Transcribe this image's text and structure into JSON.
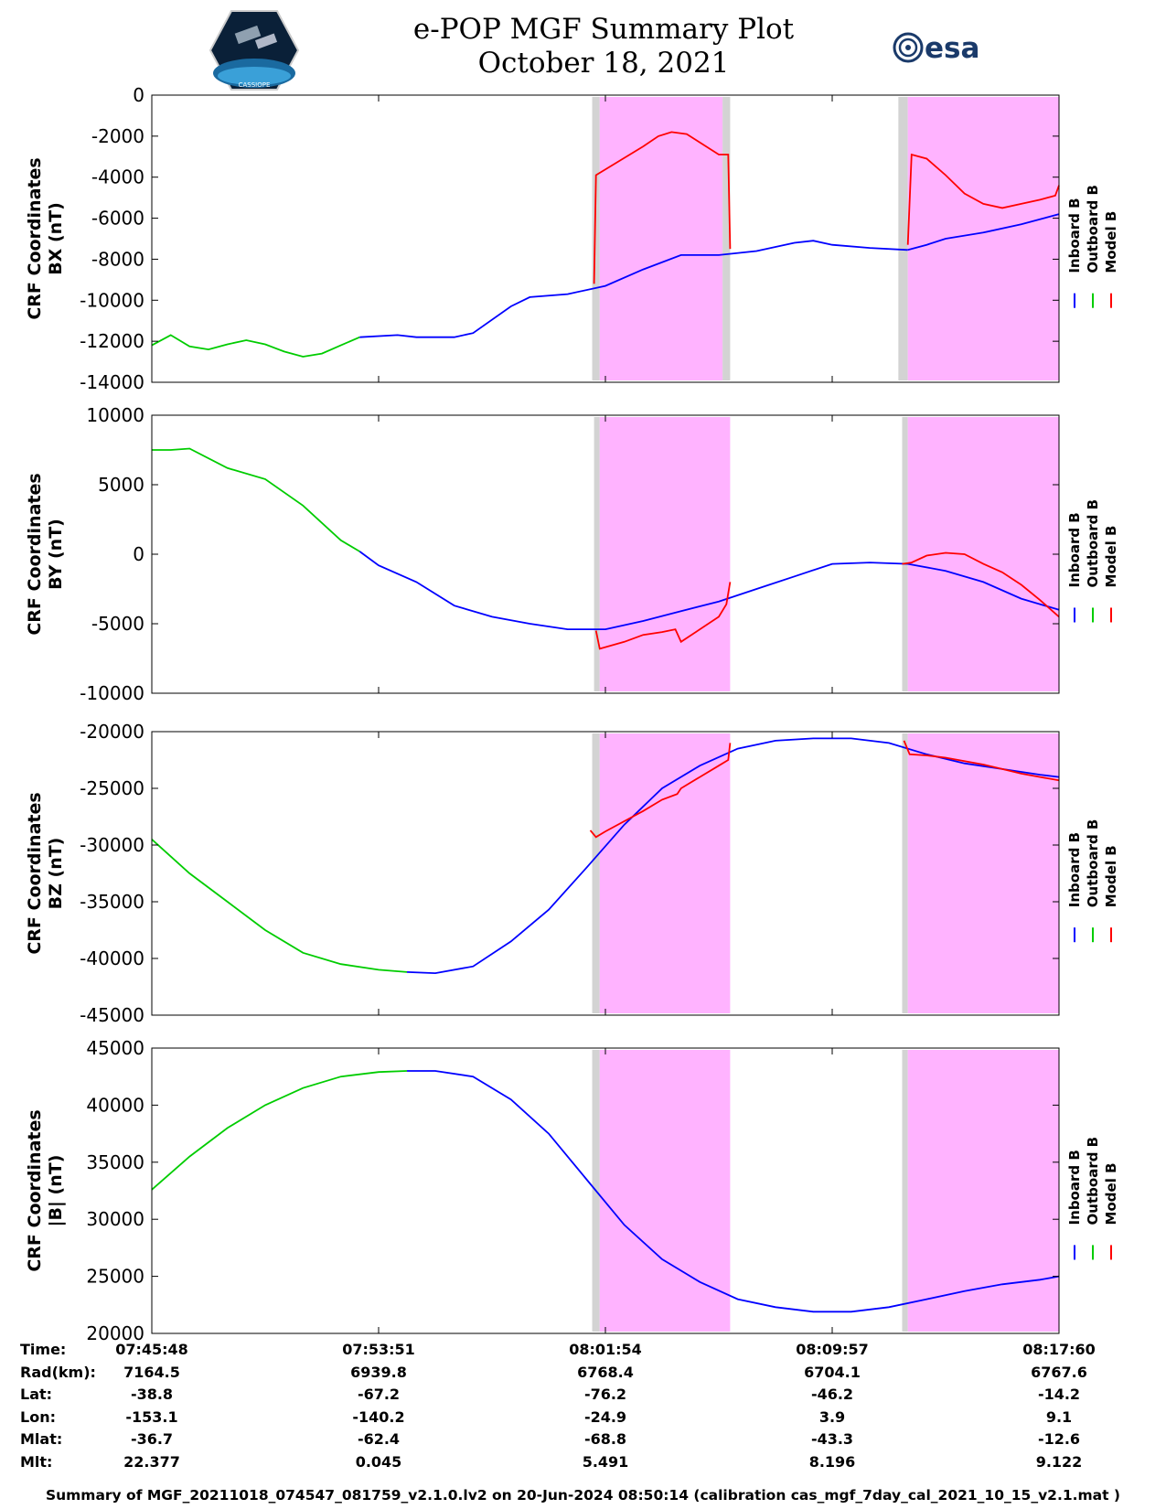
{
  "header": {
    "title_line1": "e-POP MGF Summary Plot",
    "title_line2": "October 18, 2021",
    "logo_left_text": "CASSIOPE",
    "logo_right_text": "esa"
  },
  "colors": {
    "inboard": "#0000ff",
    "outboard": "#00cc00",
    "model": "#ff0000",
    "shade_magenta": "#ffb3ff",
    "shade_gray": "#d3d3d3"
  },
  "legend": [
    "Inboard B",
    "Outboard B",
    "Model B"
  ],
  "chart_data": [
    {
      "type": "line",
      "ylabel_line1": "CRF Coordinates",
      "ylabel_line2": "BX (nT)",
      "ylim": [
        -14000,
        0
      ],
      "yticks": [
        0,
        -2000,
        -4000,
        -6000,
        -8000,
        -10000,
        -12000,
        -14000
      ],
      "series": [
        {
          "name": "Outboard B",
          "x": [
            0,
            1,
            2,
            3,
            4,
            5,
            6,
            7,
            8,
            9,
            10,
            11
          ],
          "y": [
            -12200,
            -11700,
            -12250,
            -12400,
            -12150,
            -11950,
            -12150,
            -12500,
            -12750,
            -12600,
            -12200,
            -11800
          ]
        },
        {
          "name": "Inboard B",
          "x": [
            11,
            13,
            14,
            16,
            17,
            19,
            20,
            22,
            24,
            26,
            28,
            30,
            32,
            34,
            35,
            36,
            38,
            40
          ],
          "y": [
            -11800,
            -11700,
            -11800,
            -11800,
            -11600,
            -10300,
            -9850,
            -9700,
            -9300,
            -8500,
            -7800,
            -7800,
            -7600,
            -7200,
            -7100,
            -7300,
            -7450,
            -7550
          ]
        },
        {
          "name": "Inboard B",
          "x": [
            40,
            41,
            42,
            44,
            46,
            48
          ],
          "y": [
            -7550,
            -7300,
            -7000,
            -6700,
            -6300,
            -5800
          ]
        },
        {
          "name": "Model B",
          "x": [
            23.4,
            23.5,
            26,
            26.8,
            27.5,
            28.3,
            30,
            30.5,
            30.6
          ],
          "y": [
            -9200,
            -3900,
            -2500,
            -2000,
            -1800,
            -1900,
            -2900,
            -2900,
            -7500
          ]
        },
        {
          "name": "Model B",
          "x": [
            40.0,
            40.2,
            41,
            42,
            43,
            44,
            45,
            46,
            47,
            47.8,
            48
          ],
          "y": [
            -7300,
            -2900,
            -3100,
            -3900,
            -4800,
            -5300,
            -5500,
            -5300,
            -5100,
            -4900,
            -4400
          ]
        }
      ],
      "shaded": [
        {
          "color": "gray",
          "x0": 23.3,
          "x1": 23.7
        },
        {
          "color": "magenta",
          "x0": 23.7,
          "x1": 30.2
        },
        {
          "color": "gray",
          "x0": 30.2,
          "x1": 30.6
        },
        {
          "color": "gray",
          "x0": 39.5,
          "x1": 40.0
        },
        {
          "color": "magenta",
          "x0": 40.0,
          "x1": 48
        }
      ]
    },
    {
      "type": "line",
      "ylabel_line1": "CRF Coordinates",
      "ylabel_line2": "BY (nT)",
      "ylim": [
        -10000,
        10000
      ],
      "yticks": [
        10000,
        5000,
        0,
        -5000,
        -10000
      ],
      "series": [
        {
          "name": "Outboard B",
          "x": [
            0,
            1,
            2,
            4,
            6,
            8,
            10,
            11
          ],
          "y": [
            7500,
            7500,
            7600,
            6200,
            5400,
            3500,
            1000,
            200
          ]
        },
        {
          "name": "Inboard B",
          "x": [
            11,
            12,
            14,
            16,
            18,
            20,
            22,
            24,
            26,
            28,
            30,
            32,
            34,
            36,
            38,
            40,
            42,
            44,
            46,
            48
          ],
          "y": [
            200,
            -800,
            -2000,
            -3700,
            -4500,
            -5000,
            -5400,
            -5400,
            -4800,
            -4100,
            -3400,
            -2500,
            -1600,
            -700,
            -600,
            -700,
            -1200,
            -2000,
            -3200,
            -4000
          ]
        },
        {
          "name": "Model B",
          "x": [
            23.5,
            23.7,
            25,
            26,
            27,
            27.7,
            28,
            30,
            30.4,
            30.6
          ],
          "y": [
            -5500,
            -6800,
            -6300,
            -5800,
            -5600,
            -5400,
            -6300,
            -4500,
            -3600,
            -2000
          ]
        },
        {
          "name": "Model B",
          "x": [
            39.7,
            40.2,
            41,
            42,
            43,
            44,
            45,
            46,
            47,
            48
          ],
          "y": [
            -700,
            -600,
            -100,
            100,
            0,
            -700,
            -1300,
            -2200,
            -3300,
            -4500
          ]
        }
      ],
      "shaded": [
        {
          "color": "gray",
          "x0": 23.4,
          "x1": 23.7
        },
        {
          "color": "magenta",
          "x0": 23.7,
          "x1": 30.6
        },
        {
          "color": "gray",
          "x0": 39.7,
          "x1": 40.0
        },
        {
          "color": "magenta",
          "x0": 40.0,
          "x1": 48
        }
      ]
    },
    {
      "type": "line",
      "ylabel_line1": "CRF Coordinates",
      "ylabel_line2": "BZ (nT)",
      "ylim": [
        -45000,
        -20000
      ],
      "yticks": [
        -20000,
        -25000,
        -30000,
        -35000,
        -40000,
        -45000
      ],
      "series": [
        {
          "name": "Outboard B",
          "x": [
            0,
            2,
            4,
            6,
            8,
            10,
            12,
            13.5
          ],
          "y": [
            -29500,
            -32500,
            -35000,
            -37500,
            -39500,
            -40500,
            -41000,
            -41200
          ]
        },
        {
          "name": "Inboard B",
          "x": [
            13.5,
            15,
            17,
            19,
            21,
            23,
            25,
            27,
            29,
            31,
            33,
            35,
            37,
            39,
            41,
            43,
            45,
            47,
            48
          ],
          "y": [
            -41200,
            -41300,
            -40700,
            -38500,
            -35700,
            -32000,
            -28200,
            -25000,
            -23000,
            -21500,
            -20800,
            -20600,
            -20600,
            -21000,
            -22000,
            -22800,
            -23300,
            -23800,
            -24000
          ]
        },
        {
          "name": "Model B",
          "x": [
            23.2,
            23.5,
            24,
            26,
            27,
            27.8,
            28,
            29,
            30,
            30.5,
            30.6
          ],
          "y": [
            -28700,
            -29300,
            -28800,
            -27000,
            -26000,
            -25500,
            -25000,
            -24000,
            -23000,
            -22500,
            -21000
          ]
        },
        {
          "name": "Model B",
          "x": [
            39.8,
            40.1,
            41,
            42,
            43,
            44,
            45,
            46,
            47,
            48
          ],
          "y": [
            -20800,
            -22000,
            -22100,
            -22300,
            -22600,
            -22900,
            -23300,
            -23700,
            -24000,
            -24300
          ]
        }
      ],
      "shaded": [
        {
          "color": "gray",
          "x0": 23.3,
          "x1": 23.7
        },
        {
          "color": "magenta",
          "x0": 23.7,
          "x1": 30.6
        },
        {
          "color": "gray",
          "x0": 39.7,
          "x1": 40.0
        },
        {
          "color": "magenta",
          "x0": 40.0,
          "x1": 48
        }
      ]
    },
    {
      "type": "line",
      "ylabel_line1": "CRF Coordinates",
      "ylabel_line2": "|B| (nT)",
      "ylim": [
        20000,
        45000
      ],
      "yticks": [
        45000,
        40000,
        35000,
        30000,
        25000,
        20000
      ],
      "series": [
        {
          "name": "Outboard B",
          "x": [
            0,
            2,
            4,
            6,
            8,
            10,
            12,
            13.5
          ],
          "y": [
            32600,
            35500,
            38000,
            40000,
            41500,
            42500,
            42900,
            43000
          ]
        },
        {
          "name": "Inboard B",
          "x": [
            13.5,
            15,
            17,
            19,
            21,
            23,
            25,
            27,
            29,
            31,
            33,
            35,
            37,
            39,
            41,
            43,
            45,
            47,
            48
          ],
          "y": [
            43000,
            43000,
            42500,
            40500,
            37500,
            33500,
            29500,
            26500,
            24500,
            23000,
            22300,
            21900,
            21900,
            22300,
            23000,
            23700,
            24300,
            24700,
            25000
          ]
        }
      ],
      "shaded": [
        {
          "color": "gray",
          "x0": 23.3,
          "x1": 23.7
        },
        {
          "color": "magenta",
          "x0": 23.7,
          "x1": 30.6
        },
        {
          "color": "gray",
          "x0": 39.7,
          "x1": 40.0
        },
        {
          "color": "magenta",
          "x0": 40.0,
          "x1": 48
        }
      ]
    }
  ],
  "xaxis": {
    "xlim": [
      0,
      48
    ],
    "ticks": [
      0,
      12,
      24,
      36,
      48
    ]
  },
  "info_table": {
    "labels": [
      "Time:",
      "Rad(km):",
      "Lat:",
      "Lon:",
      "Mlat:",
      "Mlt:"
    ],
    "columns": [
      [
        "07:45:48",
        "7164.5",
        "-38.8",
        "-153.1",
        "-36.7",
        "22.377"
      ],
      [
        "07:53:51",
        "6939.8",
        "-67.2",
        "-140.2",
        "-62.4",
        "0.045"
      ],
      [
        "08:01:54",
        "6768.4",
        "-76.2",
        "-24.9",
        "-68.8",
        "5.491"
      ],
      [
        "08:09:57",
        "6704.1",
        "-46.2",
        "3.9",
        "-43.3",
        "8.196"
      ],
      [
        "08:17:60",
        "6767.6",
        "-14.2",
        "9.1",
        "-12.6",
        "9.122"
      ]
    ]
  },
  "footer": "Summary of MGF_20211018_074547_081759_v2.1.0.lv2 on 20-Jun-2024 08:50:14 (calibration cas_mgf_7day_cal_2021_10_15_v2.1.mat )"
}
